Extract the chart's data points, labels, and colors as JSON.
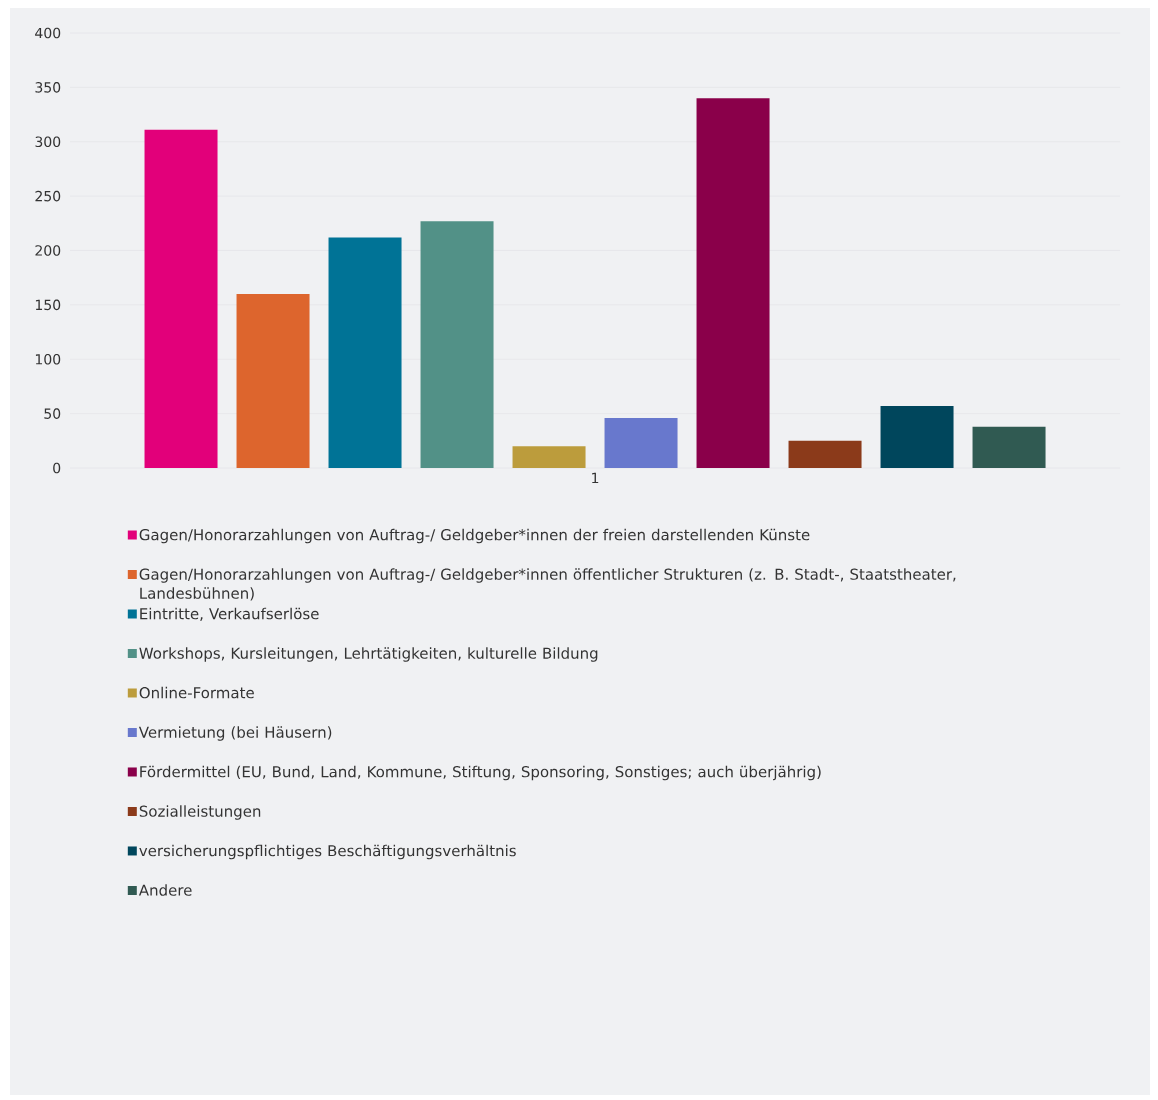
{
  "chart_data": {
    "type": "bar",
    "categories": [
      "1"
    ],
    "ylim": [
      0,
      400
    ],
    "yticks": [
      0,
      50,
      100,
      150,
      200,
      250,
      300,
      350,
      400
    ],
    "grid": "y",
    "legend": "bottom",
    "series": [
      {
        "name": "Gagen/Honorarzahlungen von Auftrag-/ Geldgeber*innen der freien darstellenden Künste",
        "color": "#e2007a",
        "values": [
          311
        ]
      },
      {
        "name": "Gagen/Honorarzahlungen von Auftrag-/ Geldgeber*innen öffentlicher Strukturen (z. B. Stadt-, Staatstheater, Landesbühnen)",
        "color": "#dd652d",
        "values": [
          160
        ]
      },
      {
        "name": "Eintritte, Verkaufserlöse",
        "color": "#007396",
        "values": [
          212
        ]
      },
      {
        "name": "Workshops, Kursleitungen, Lehrtätigkeiten, kulturelle Bildung",
        "color": "#529187",
        "values": [
          227
        ]
      },
      {
        "name": "Online-Formate",
        "color": "#bc9c3c",
        "values": [
          20
        ]
      },
      {
        "name": "Vermietung (bei Häusern)",
        "color": "#6878cd",
        "values": [
          46
        ]
      },
      {
        "name": "Fördermittel (EU, Bund, Land, Kommune, Stiftung, Sponsoring, Sonstiges; auch überjährig)",
        "color": "#8a004a",
        "values": [
          340
        ]
      },
      {
        "name": "Sozialleistungen",
        "color": "#8b3a1a",
        "values": [
          25
        ]
      },
      {
        "name": "versicherungspflichtiges Beschäftigungsverhältnis",
        "color": "#00465c",
        "values": [
          57
        ]
      },
      {
        "name": "Andere",
        "color": "#305a52",
        "values": [
          38
        ]
      }
    ]
  }
}
